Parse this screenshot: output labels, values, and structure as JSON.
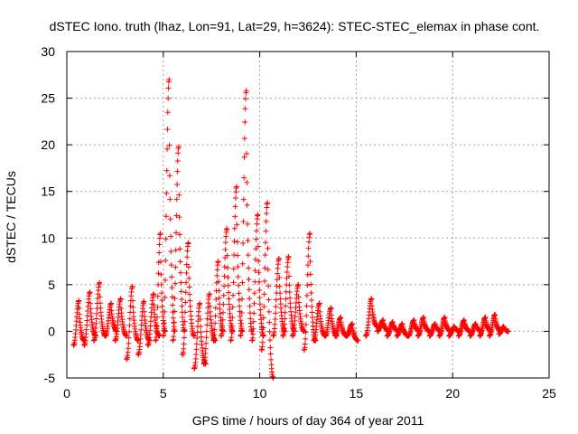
{
  "chart_data": {
    "type": "scatter",
    "title": "dSTEC Iono. truth (lhaz, Lon=91, Lat=29, h=3624): STEC-STEC_elemax in phase cont.",
    "xlabel": "GPS time / hours of day 364 of year 2011",
    "ylabel": "dSTEC  / TECUs",
    "xlim": [
      0,
      25
    ],
    "ylim": [
      -5,
      30
    ],
    "xticks": [
      0,
      5,
      10,
      15,
      20,
      25
    ],
    "yticks": [
      -5,
      0,
      5,
      10,
      15,
      20,
      25,
      30
    ],
    "grid": true,
    "marker": "+",
    "color": "#ff0000",
    "arcs": [
      {
        "t": [
          0.35,
          0.9
        ],
        "v": [
          -1.5,
          3.3,
          -1.0
        ]
      },
      {
        "t": [
          0.9,
          1.5
        ],
        "v": [
          -1.5,
          4.2,
          -0.5
        ]
      },
      {
        "t": [
          1.4,
          2.0
        ],
        "v": [
          -1.0,
          5.2,
          -0.5
        ]
      },
      {
        "t": [
          2.0,
          2.6
        ],
        "v": [
          -0.5,
          3.0,
          0.0
        ]
      },
      {
        "t": [
          2.5,
          3.1
        ],
        "v": [
          -1.0,
          3.5,
          -0.5
        ]
      },
      {
        "t": [
          3.1,
          3.7
        ],
        "v": [
          -3.0,
          4.8,
          -1.0
        ]
      },
      {
        "t": [
          3.7,
          4.3
        ],
        "v": [
          -2.5,
          3.2,
          -1.0
        ]
      },
      {
        "t": [
          4.2,
          4.8
        ],
        "v": [
          -1.5,
          4.0,
          -0.5
        ]
      },
      {
        "t": [
          4.6,
          5.1
        ],
        "v": [
          -1.0,
          10.5,
          0.0
        ]
      },
      {
        "t": [
          5.0,
          5.6
        ],
        "v": [
          -0.5,
          27.0,
          0.0
        ]
      },
      {
        "t": [
          5.5,
          6.1
        ],
        "v": [
          -1.0,
          19.8,
          0.0
        ]
      },
      {
        "t": [
          6.0,
          6.6
        ],
        "v": [
          -2.5,
          9.5,
          -0.5
        ]
      },
      {
        "t": [
          6.6,
          7.2
        ],
        "v": [
          -4.0,
          3.0,
          -3.5
        ]
      },
      {
        "t": [
          7.1,
          7.7
        ],
        "v": [
          -3.5,
          4.0,
          -1.0
        ]
      },
      {
        "t": [
          7.6,
          8.1
        ],
        "v": [
          -1.0,
          7.5,
          0.0
        ]
      },
      {
        "t": [
          8.0,
          8.6
        ],
        "v": [
          -0.5,
          11.0,
          0.0
        ]
      },
      {
        "t": [
          8.5,
          9.1
        ],
        "v": [
          -1.0,
          15.5,
          0.0
        ]
      },
      {
        "t": [
          9.0,
          9.6
        ],
        "v": [
          -0.5,
          25.8,
          0.0
        ]
      },
      {
        "t": [
          9.6,
          10.2
        ],
        "v": [
          -1.0,
          12.5,
          -0.5
        ]
      },
      {
        "t": [
          10.1,
          10.7
        ],
        "v": [
          -2.0,
          13.8,
          -5.0
        ]
      },
      {
        "t": [
          10.7,
          11.3
        ],
        "v": [
          -0.5,
          7.8,
          0.0
        ]
      },
      {
        "t": [
          11.2,
          11.8
        ],
        "v": [
          -0.5,
          8.0,
          0.0
        ]
      },
      {
        "t": [
          11.7,
          12.3
        ],
        "v": [
          -0.5,
          5.0,
          0.0
        ]
      },
      {
        "t": [
          12.3,
          12.9
        ],
        "v": [
          -2.0,
          10.5,
          -1.0
        ]
      },
      {
        "t": [
          12.8,
          13.4
        ],
        "v": [
          -1.0,
          3.0,
          -0.5
        ]
      },
      {
        "t": [
          13.4,
          14.0
        ],
        "v": [
          -0.5,
          2.5,
          -0.5
        ]
      },
      {
        "t": [
          13.9,
          14.5
        ],
        "v": [
          -0.5,
          1.5,
          -0.5
        ]
      },
      {
        "t": [
          14.5,
          15.1
        ],
        "v": [
          -0.5,
          0.8,
          -1.0
        ]
      },
      {
        "t": [
          15.5,
          16.1
        ],
        "v": [
          -0.5,
          3.5,
          0.5
        ]
      },
      {
        "t": [
          16.1,
          16.7
        ],
        "v": [
          0.0,
          1.2,
          0.0
        ]
      },
      {
        "t": [
          16.6,
          17.2
        ],
        "v": [
          -0.5,
          1.0,
          0.0
        ]
      },
      {
        "t": [
          17.1,
          17.7
        ],
        "v": [
          -0.5,
          0.8,
          -0.5
        ]
      },
      {
        "t": [
          17.7,
          18.3
        ],
        "v": [
          -0.5,
          1.2,
          0.0
        ]
      },
      {
        "t": [
          18.2,
          18.8
        ],
        "v": [
          -0.5,
          1.5,
          0.0
        ]
      },
      {
        "t": [
          18.8,
          19.4
        ],
        "v": [
          -0.5,
          0.8,
          0.0
        ]
      },
      {
        "t": [
          19.3,
          19.9
        ],
        "v": [
          -0.5,
          1.5,
          0.0
        ]
      },
      {
        "t": [
          19.8,
          20.4
        ],
        "v": [
          -0.5,
          0.5,
          0.0
        ]
      },
      {
        "t": [
          20.3,
          20.9
        ],
        "v": [
          -0.5,
          1.2,
          0.0
        ]
      },
      {
        "t": [
          20.9,
          21.5
        ],
        "v": [
          -0.5,
          0.8,
          0.0
        ]
      },
      {
        "t": [
          21.4,
          22.0
        ],
        "v": [
          -0.5,
          1.5,
          0.0
        ]
      },
      {
        "t": [
          21.9,
          22.5
        ],
        "v": [
          -0.5,
          1.8,
          0.0
        ]
      },
      {
        "t": [
          22.4,
          22.9
        ],
        "v": [
          -0.3,
          0.5,
          0.0
        ]
      }
    ]
  }
}
